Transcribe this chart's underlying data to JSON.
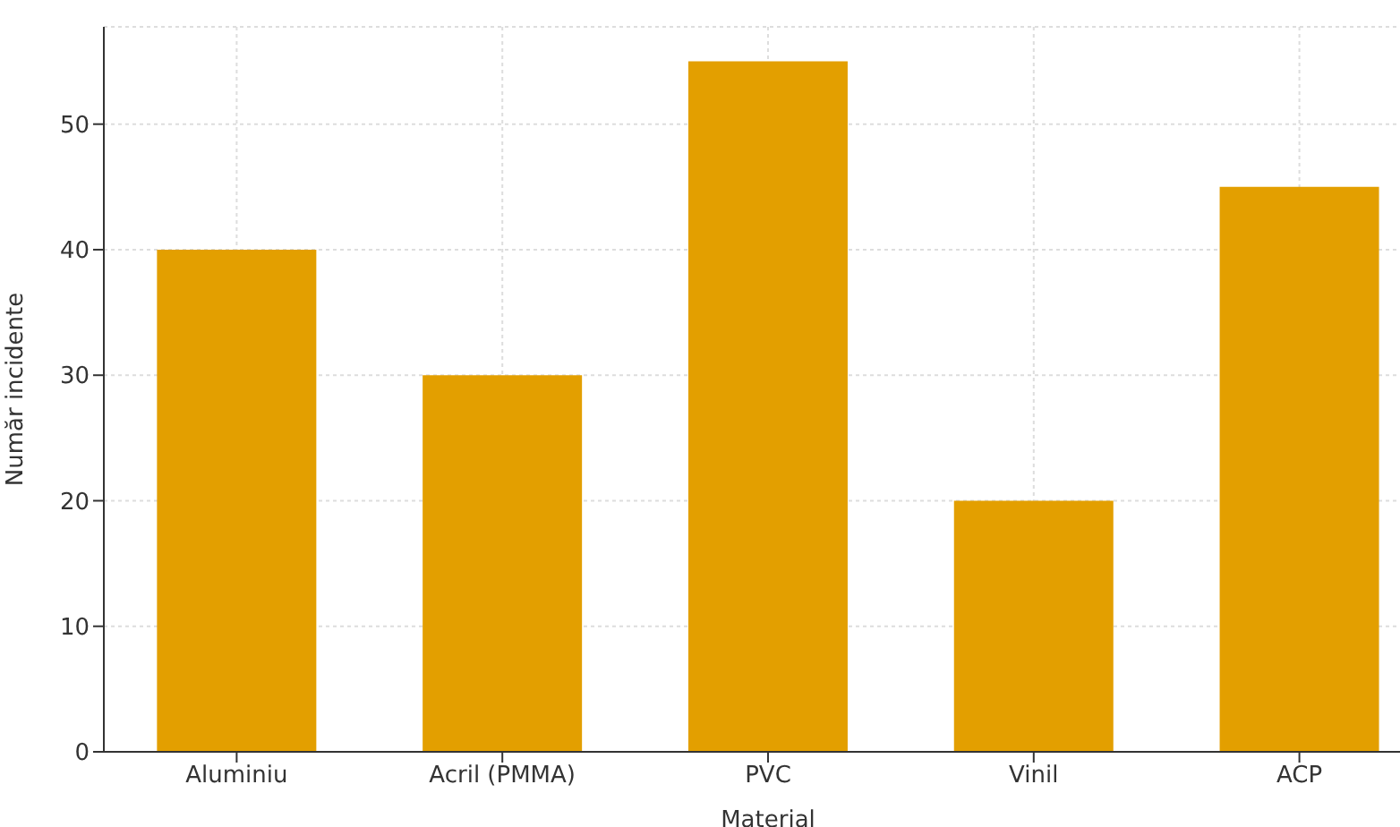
{
  "chart_data": {
    "type": "bar",
    "xlabel": "Material",
    "ylabel": "Număr incidente",
    "categories": [
      "Aluminiu",
      "Acril (PMMA)",
      "PVC",
      "Vinil",
      "ACP"
    ],
    "values": [
      40,
      30,
      55,
      20,
      45
    ],
    "color": "#e39f00",
    "ylim": [
      0,
      57.75
    ],
    "yticks": [
      0,
      10,
      20,
      30,
      40,
      50
    ],
    "grid": true
  }
}
